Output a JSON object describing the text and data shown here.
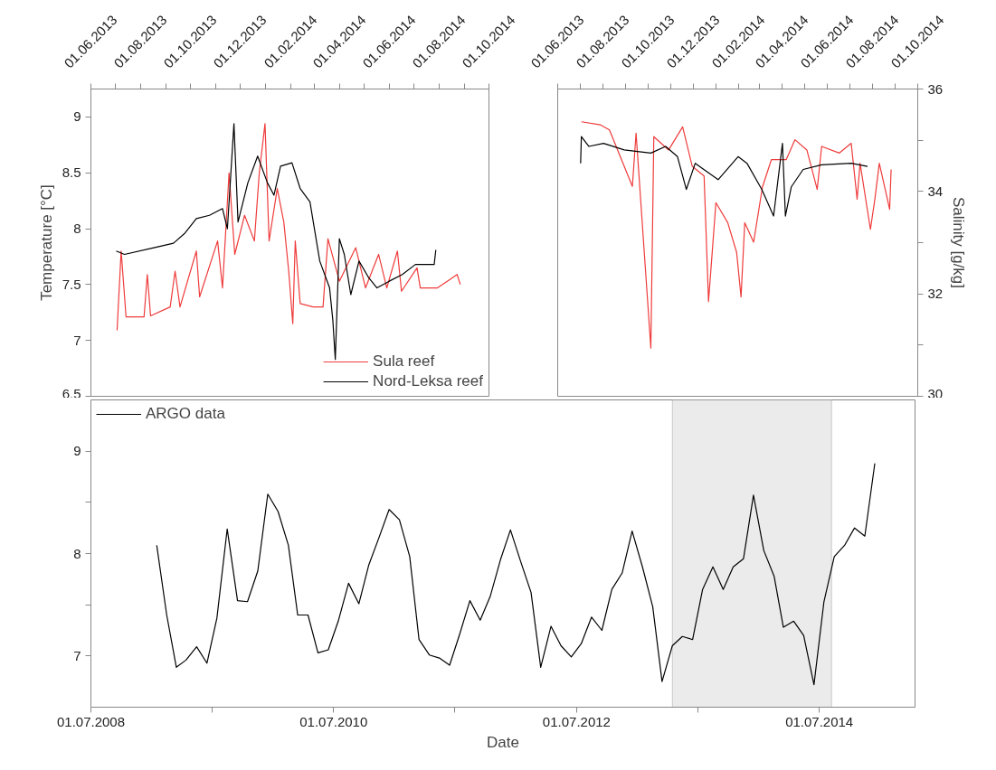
{
  "chart_data": [
    {
      "type": "line",
      "ylabel": "Temperature [°C]",
      "xlim": [
        "2013-06-01",
        "2014-10-01"
      ],
      "ylim": [
        6.5,
        9.25
      ],
      "xticks": [
        {
          "value": "2013-06-01",
          "label": "01.06.2013"
        },
        {
          "value": "2013-07-01",
          "label": null
        },
        {
          "value": "2013-08-01",
          "label": "01.08.2013"
        },
        {
          "value": "2013-09-01",
          "label": null
        },
        {
          "value": "2013-10-01",
          "label": "01.10.2013"
        },
        {
          "value": "2013-11-01",
          "label": null
        },
        {
          "value": "2013-12-01",
          "label": "01.12.2013"
        },
        {
          "value": "2014-01-01",
          "label": null
        },
        {
          "value": "2014-02-01",
          "label": "01.02.2014"
        },
        {
          "value": "2014-03-01",
          "label": null
        },
        {
          "value": "2014-04-01",
          "label": "01.04.2014"
        },
        {
          "value": "2014-05-01",
          "label": null
        },
        {
          "value": "2014-06-01",
          "label": "01.06.2014"
        },
        {
          "value": "2014-07-01",
          "label": null
        },
        {
          "value": "2014-08-01",
          "label": "01.08.2014"
        },
        {
          "value": "2014-09-01",
          "label": null
        },
        {
          "value": "2014-10-01",
          "label": "01.10.2014"
        }
      ],
      "yticks": [
        6.5,
        7,
        7.5,
        8,
        8.5,
        9
      ],
      "legend": "bottom right",
      "series": [
        {
          "name": "Sula reef",
          "color": "#ef3b3b",
          "x": [
            "2013-07-03",
            "2013-07-08",
            "2013-07-14",
            "2013-08-05",
            "2013-08-09",
            "2013-08-13",
            "2013-09-06",
            "2013-09-12",
            "2013-09-18",
            "2013-10-08",
            "2013-10-12",
            "2013-11-03",
            "2013-11-09",
            "2013-11-17",
            "2013-11-24",
            "2013-12-06",
            "2013-12-18",
            "2013-12-24",
            "2013-12-31",
            "2014-01-05",
            "2014-01-15",
            "2014-01-23",
            "2014-01-29",
            "2014-02-03",
            "2014-02-06",
            "2014-02-12",
            "2014-02-28",
            "2014-03-12",
            "2014-03-18",
            "2014-04-01",
            "2014-04-21",
            "2014-05-03",
            "2014-05-19",
            "2014-05-29",
            "2014-06-11",
            "2014-06-16",
            "2014-07-05",
            "2014-07-09",
            "2014-07-30",
            "2014-08-11",
            "2014-08-23",
            "2014-08-27"
          ],
          "values": [
            7.09,
            7.8,
            7.21,
            7.21,
            7.59,
            7.22,
            7.3,
            7.62,
            7.3,
            7.8,
            7.39,
            7.89,
            7.47,
            8.5,
            7.77,
            8.12,
            7.89,
            8.5,
            8.94,
            7.89,
            8.36,
            8.06,
            7.62,
            7.15,
            7.89,
            7.33,
            7.3,
            7.3,
            7.91,
            7.53,
            7.83,
            7.47,
            7.77,
            7.47,
            7.8,
            7.44,
            7.65,
            7.47,
            7.47,
            7.53,
            7.59,
            7.5
          ]
        },
        {
          "name": "Nord-Leksa reef",
          "color": "#000000",
          "x": [
            "2013-07-02",
            "2013-07-12",
            "2013-08-17",
            "2013-09-10",
            "2013-09-24",
            "2013-10-08",
            "2013-10-24",
            "2013-11-09",
            "2013-11-15",
            "2013-11-23",
            "2013-11-28",
            "2013-12-10",
            "2013-12-22",
            "2014-01-03",
            "2014-01-11",
            "2014-01-19",
            "2014-02-02",
            "2014-02-12",
            "2014-02-24",
            "2014-03-08",
            "2014-03-20",
            "2014-03-24",
            "2014-03-27",
            "2014-04-01",
            "2014-04-07",
            "2014-04-15",
            "2014-04-25",
            "2014-05-07",
            "2014-05-17",
            "2014-06-01",
            "2014-06-17",
            "2014-07-03",
            "2014-07-26",
            "2014-07-28"
          ],
          "values": [
            7.8,
            7.77,
            7.83,
            7.87,
            7.96,
            8.09,
            8.12,
            8.18,
            8.0,
            8.94,
            8.06,
            8.41,
            8.65,
            8.41,
            8.3,
            8.56,
            8.59,
            8.36,
            8.24,
            7.71,
            7.47,
            7.18,
            6.83,
            7.91,
            7.77,
            7.41,
            7.71,
            7.56,
            7.47,
            7.53,
            7.59,
            7.68,
            7.68,
            7.81
          ]
        }
      ]
    },
    {
      "type": "line",
      "y2label": "Salinity [g/kg]",
      "xlim": [
        "2013-06-01",
        "2014-10-01"
      ],
      "y2lim": [
        30,
        36
      ],
      "xticks": [
        {
          "value": "2013-06-01",
          "label": "01.06.2013"
        },
        {
          "value": "2013-07-01",
          "label": null
        },
        {
          "value": "2013-08-01",
          "label": "01.08.2013"
        },
        {
          "value": "2013-09-01",
          "label": null
        },
        {
          "value": "2013-10-01",
          "label": "01.10.2013"
        },
        {
          "value": "2013-11-01",
          "label": null
        },
        {
          "value": "2013-12-01",
          "label": "01.12.2013"
        },
        {
          "value": "2014-01-01",
          "label": null
        },
        {
          "value": "2014-02-01",
          "label": "01.02.2014"
        },
        {
          "value": "2014-03-01",
          "label": null
        },
        {
          "value": "2014-04-01",
          "label": "01.04.2014"
        },
        {
          "value": "2014-05-01",
          "label": null
        },
        {
          "value": "2014-06-01",
          "label": "01.06.2014"
        },
        {
          "value": "2014-07-01",
          "label": null
        },
        {
          "value": "2014-08-01",
          "label": "01.08.2014"
        },
        {
          "value": "2014-09-01",
          "label": null
        },
        {
          "value": "2014-10-01",
          "label": "01.10.2014"
        }
      ],
      "y2ticks": [
        30,
        {
          "value": 31,
          "label": null
        },
        32,
        {
          "value": 33,
          "label": null
        },
        34,
        {
          "value": 35,
          "label": null
        },
        36
      ],
      "series": [
        {
          "axis": "y2",
          "color": "#ef3b3b",
          "x": [
            "2013-07-03",
            "2013-07-29",
            "2013-08-10",
            "2013-09-10",
            "2013-09-15",
            "2013-10-05",
            "2013-10-09",
            "2013-10-29",
            "2013-11-17",
            "2013-11-30",
            "2013-12-16",
            "2013-12-22",
            "2014-01-01",
            "2014-01-17",
            "2014-01-29",
            "2014-02-04",
            "2014-02-09",
            "2014-02-21",
            "2014-03-05",
            "2014-03-17",
            "2014-04-06",
            "2014-04-18",
            "2014-05-04",
            "2014-05-18",
            "2014-05-24",
            "2014-06-17",
            "2014-07-03",
            "2014-07-11",
            "2014-07-15",
            "2014-07-29",
            "2014-08-04",
            "2014-08-10",
            "2014-08-18",
            "2014-08-24",
            "2014-08-26"
          ],
          "values": [
            35.36,
            35.3,
            35.2,
            34.1,
            35.14,
            30.94,
            35.07,
            34.81,
            35.26,
            34.49,
            34.3,
            31.85,
            33.78,
            33.39,
            32.81,
            31.94,
            33.39,
            33.01,
            34.09,
            34.62,
            34.62,
            35.01,
            34.81,
            34.04,
            34.88,
            34.75,
            34.94,
            33.85,
            34.55,
            33.26,
            33.85,
            34.55,
            34.04,
            33.65,
            34.43
          ]
        },
        {
          "axis": "y2",
          "color": "#000000",
          "x": [
            "2013-07-02",
            "2013-07-03",
            "2013-07-13",
            "2013-08-02",
            "2013-08-30",
            "2013-10-05",
            "2013-10-25",
            "2013-11-10",
            "2013-11-22",
            "2013-12-04",
            "2014-01-04",
            "2014-01-31",
            "2014-02-12",
            "2014-03-04",
            "2014-03-20",
            "2014-04-01",
            "2014-04-05",
            "2014-04-13",
            "2014-04-29",
            "2014-05-24",
            "2014-07-03",
            "2014-07-25"
          ],
          "values": [
            34.55,
            35.07,
            34.88,
            34.94,
            34.81,
            34.75,
            34.88,
            34.68,
            34.04,
            34.55,
            34.23,
            34.68,
            34.55,
            34.04,
            33.52,
            34.94,
            33.52,
            34.09,
            34.43,
            34.52,
            34.55,
            34.49
          ]
        }
      ]
    },
    {
      "type": "line",
      "xlabel": "Date",
      "xlim": [
        "2008-07-01",
        "2015-04-15"
      ],
      "ylim": [
        6.5,
        9.5
      ],
      "xticks": [
        {
          "value": "2008-07-01",
          "label": "01.07.2008"
        },
        {
          "value": "2009-07-01",
          "label": null
        },
        {
          "value": "2010-07-01",
          "label": "01.07.2010"
        },
        {
          "value": "2011-07-01",
          "label": null
        },
        {
          "value": "2012-07-01",
          "label": "01.07.2012"
        },
        {
          "value": "2013-07-01",
          "label": null
        },
        {
          "value": "2014-07-01",
          "label": "01.07.2014"
        }
      ],
      "yticks": [
        7,
        {
          "value": 7.5,
          "label": null
        },
        8,
        {
          "value": 8.5,
          "label": null
        },
        9
      ],
      "legend": "top left",
      "bands": [
        {
          "axis": "x",
          "from": "2013-04-15",
          "to": "2014-08-07",
          "color": "#ebebeb"
        }
      ],
      "series": [
        {
          "name": "ARGO data",
          "color": "#000000",
          "x": [
            "2009-01-15",
            "2009-02-14",
            "2009-03-15",
            "2009-04-13",
            "2009-05-15",
            "2009-06-15",
            "2009-07-15",
            "2009-08-15",
            "2009-09-15",
            "2009-10-15",
            "2009-11-15",
            "2009-12-15",
            "2010-01-15",
            "2010-02-15",
            "2010-03-15",
            "2010-04-15",
            "2010-05-15",
            "2010-06-15",
            "2010-07-15",
            "2010-08-15",
            "2010-09-15",
            "2010-10-15",
            "2010-11-15",
            "2010-12-15",
            "2011-01-15",
            "2011-02-15",
            "2011-03-15",
            "2011-04-15",
            "2011-05-15",
            "2011-06-15",
            "2011-07-15",
            "2011-08-15",
            "2011-09-15",
            "2011-10-15",
            "2011-11-15",
            "2011-12-15",
            "2012-01-15",
            "2012-02-15",
            "2012-03-15",
            "2012-04-15",
            "2012-05-15",
            "2012-06-15",
            "2012-07-15",
            "2012-08-15",
            "2012-09-15",
            "2012-10-15",
            "2012-11-15",
            "2012-12-15",
            "2013-01-15",
            "2013-02-15",
            "2013-03-15",
            "2013-04-15",
            "2013-05-15",
            "2013-06-15",
            "2013-07-15",
            "2013-08-15",
            "2013-09-15",
            "2013-10-15",
            "2013-11-15",
            "2013-12-15",
            "2014-01-15",
            "2014-02-15",
            "2014-03-15",
            "2014-04-15",
            "2014-05-15",
            "2014-06-15",
            "2014-07-15",
            "2014-08-15",
            "2014-09-15",
            "2014-10-15",
            "2014-11-15",
            "2014-12-15"
          ],
          "values": [
            8.08,
            7.4,
            6.89,
            6.96,
            7.09,
            6.93,
            7.37,
            8.24,
            7.54,
            7.53,
            7.83,
            8.58,
            8.41,
            8.08,
            7.4,
            7.4,
            7.03,
            7.06,
            7.34,
            7.71,
            7.51,
            7.89,
            8.16,
            8.43,
            8.33,
            7.97,
            7.16,
            7.01,
            6.98,
            6.91,
            7.21,
            7.54,
            7.35,
            7.58,
            7.94,
            8.23,
            7.92,
            7.62,
            6.89,
            7.29,
            7.1,
            6.99,
            7.12,
            7.38,
            7.25,
            7.65,
            7.81,
            8.22,
            7.87,
            7.48,
            6.75,
            7.1,
            7.19,
            7.16,
            7.65,
            7.87,
            7.65,
            7.87,
            7.95,
            8.57,
            8.03,
            7.78,
            7.28,
            7.34,
            7.2,
            6.72,
            7.53,
            7.97,
            8.08,
            8.25,
            8.17,
            8.88
          ]
        }
      ]
    }
  ]
}
